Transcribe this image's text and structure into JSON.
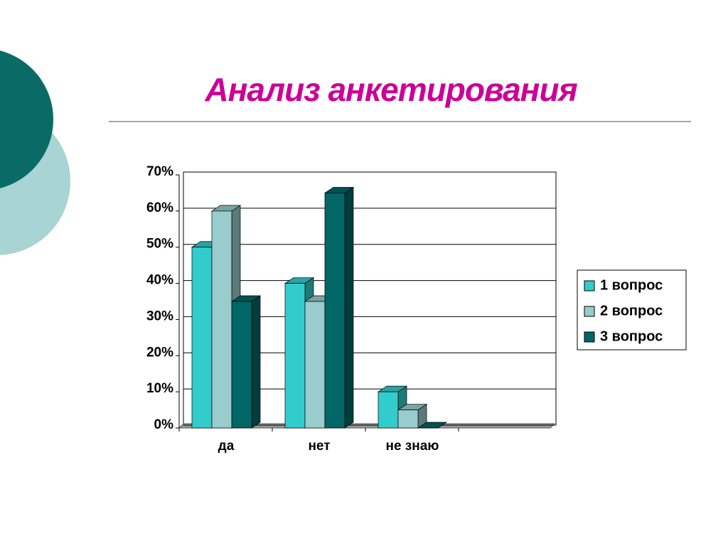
{
  "chart_data": {
    "type": "bar3d",
    "title": "Анализ анкетирования",
    "categories": [
      "да",
      "нет",
      "не знаю",
      null
    ],
    "series": [
      {
        "name": "1 вопрос",
        "color": "#33cccc",
        "values": [
          50,
          40,
          10,
          null
        ]
      },
      {
        "name": "2 вопрос",
        "color": "#99cccc",
        "values": [
          60,
          35,
          5,
          null
        ]
      },
      {
        "name": "3 вопрос",
        "color": "#006666",
        "values": [
          35,
          65,
          0,
          null
        ]
      }
    ],
    "ylim": [
      0,
      70
    ],
    "yticks": [
      {
        "value": 0,
        "label": "0%"
      },
      {
        "value": 10,
        "label": "10%"
      },
      {
        "value": 20,
        "label": "20%"
      },
      {
        "value": 30,
        "label": "30%"
      },
      {
        "value": 40,
        "label": "40%"
      },
      {
        "value": 50,
        "label": "50%"
      },
      {
        "value": 60,
        "label": "60%"
      },
      {
        "value": 70,
        "label": "70%"
      }
    ],
    "grid": true,
    "legend": "right"
  }
}
